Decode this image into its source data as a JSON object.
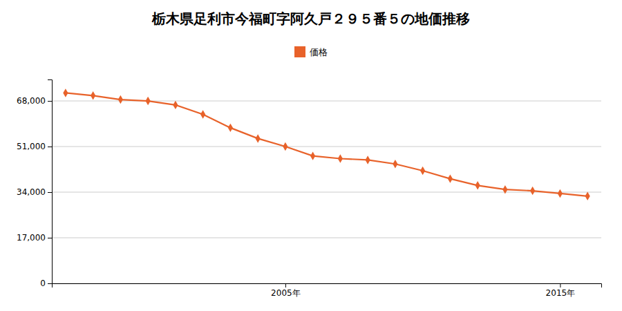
{
  "chart_data": {
    "type": "line",
    "title": "栃木県足利市今福町字阿久戸２９５番５の地価推移",
    "x": [
      1997,
      1998,
      1999,
      2000,
      2001,
      2002,
      2003,
      2004,
      2005,
      2006,
      2007,
      2008,
      2009,
      2010,
      2011,
      2012,
      2013,
      2014,
      2015,
      2016
    ],
    "series": [
      {
        "name": "価格",
        "color": "#e8622a",
        "marker": "diamond",
        "values": [
          71000,
          70000,
          68500,
          68000,
          66500,
          63000,
          58000,
          54000,
          51000,
          47500,
          46500,
          46000,
          44500,
          42000,
          39000,
          36500,
          35000,
          34500,
          33500,
          32500
        ]
      }
    ],
    "xlim": [
      1996.5,
      2016.5
    ],
    "xticks": [
      {
        "value": 2005,
        "label": "2005年"
      },
      {
        "value": 2015,
        "label": "2015年"
      }
    ],
    "ylim": [
      0,
      76000
    ],
    "yticks": [
      0,
      {
        "value": 17000,
        "label": "17,000"
      },
      {
        "value": 34000,
        "label": "34,000"
      },
      {
        "value": 51000,
        "label": "51,000"
      },
      {
        "value": 68000,
        "label": "68,000"
      }
    ],
    "grid": "y",
    "legend": "top"
  }
}
